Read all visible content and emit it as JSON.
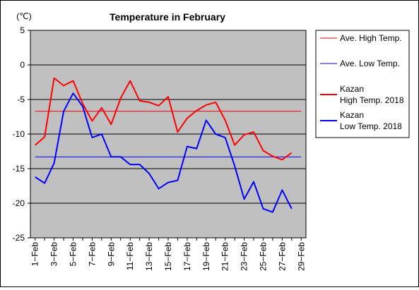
{
  "chart_data": {
    "type": "line",
    "title": "Temperature in February",
    "unit_label": "(℃)",
    "ylim": [
      -25,
      5
    ],
    "y_ticks": [
      5,
      0,
      -5,
      -10,
      -15,
      -20,
      -25
    ],
    "x_tick_labels": [
      "1−Feb",
      "3−Feb",
      "5−Feb",
      "7−Feb",
      "9−Feb",
      "11−Feb",
      "13−Feb",
      "15−Feb",
      "17−Feb",
      "19−Feb",
      "21−Feb",
      "23−Feb",
      "25−Feb",
      "27−Feb",
      "29−Feb"
    ],
    "days": [
      1,
      2,
      3,
      4,
      5,
      6,
      7,
      8,
      9,
      10,
      11,
      12,
      13,
      14,
      15,
      16,
      17,
      18,
      19,
      20,
      21,
      22,
      23,
      24,
      25,
      26,
      27,
      28
    ],
    "grid": true,
    "legend_position": "right",
    "plot_background": "#c0c0c0",
    "series": [
      {
        "name": "Ave. High Temp.",
        "style": "reference",
        "color": "#ff0000",
        "value": -6.7
      },
      {
        "name": "Ave. Low Temp.",
        "style": "reference",
        "color": "#0000ff",
        "value": -13.3
      },
      {
        "name": "Kazan High Temp. 2018",
        "legend_lines": [
          "Kazan",
          "High Temp. 2018"
        ],
        "style": "line",
        "color": "#ff0000",
        "values": [
          -11.6,
          -10.4,
          -1.9,
          -3.0,
          -2.3,
          -5.6,
          -8.1,
          -6.2,
          -8.6,
          -4.8,
          -2.3,
          -5.2,
          -5.4,
          -5.9,
          -4.6,
          -9.7,
          -7.7,
          -6.6,
          -5.8,
          -5.4,
          -8.0,
          -11.6,
          -10.1,
          -9.7,
          -12.4,
          -13.2,
          -13.7,
          -12.7
        ]
      },
      {
        "name": "Kazan Low Temp. 2018",
        "legend_lines": [
          "Kazan",
          "Low Temp. 2018"
        ],
        "style": "line",
        "color": "#0000ff",
        "values": [
          -16.2,
          -17.1,
          -14.2,
          -6.7,
          -4.1,
          -6.0,
          -10.5,
          -10.0,
          -13.3,
          -13.3,
          -14.4,
          -14.4,
          -15.7,
          -17.9,
          -17.0,
          -16.7,
          -11.8,
          -12.1,
          -8.0,
          -10.0,
          -10.5,
          -14.6,
          -19.4,
          -16.9,
          -20.8,
          -21.3,
          -18.1,
          -20.8
        ]
      }
    ]
  }
}
